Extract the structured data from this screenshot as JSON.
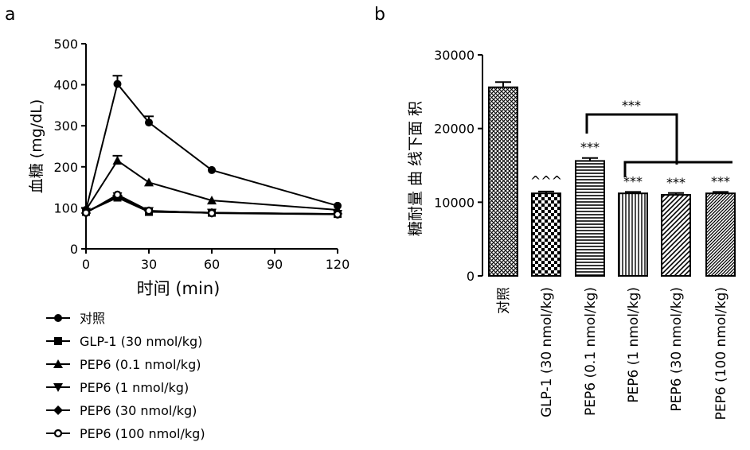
{
  "panels": {
    "a_label": "a",
    "b_label": "b"
  },
  "chart_data": [
    {
      "type": "line",
      "panel": "a",
      "ylabel": "血糖 (mg/dL)",
      "xlabel": "时间 (min)",
      "xlim": [
        0,
        120
      ],
      "ylim": [
        0,
        500
      ],
      "x_ticks": [
        0,
        30,
        60,
        90,
        120
      ],
      "y_ticks": [
        0,
        100,
        200,
        300,
        400,
        500
      ],
      "x": [
        0,
        15,
        30,
        60,
        120
      ],
      "legend_position": "below",
      "series": [
        {
          "name": "对照",
          "marker": "circle",
          "values": [
            95,
            402,
            308,
            192,
            105
          ],
          "errors": [
            0,
            20,
            15,
            0,
            0
          ]
        },
        {
          "name": "GLP-1 (30 nmol/kg)",
          "marker": "square",
          "values": [
            90,
            125,
            90,
            88,
            85
          ],
          "errors": [
            0,
            5,
            0,
            0,
            0
          ]
        },
        {
          "name": "PEP6 (0.1 nmol/kg)",
          "marker": "triangle-up",
          "values": [
            95,
            215,
            162,
            118,
            95
          ],
          "errors": [
            0,
            12,
            0,
            0,
            0
          ]
        },
        {
          "name": "PEP6 (1 nmol/kg)",
          "marker": "triangle-down",
          "values": [
            90,
            128,
            92,
            88,
            85
          ],
          "errors": [
            0,
            0,
            0,
            0,
            0
          ]
        },
        {
          "name": "PEP6 (30 nmol/kg)",
          "marker": "diamond",
          "values": [
            88,
            130,
            92,
            88,
            85
          ],
          "errors": [
            0,
            0,
            0,
            0,
            0
          ]
        },
        {
          "name": "PEP6 (100 nmol/kg)",
          "marker": "circle-open",
          "values": [
            88,
            132,
            93,
            87,
            84
          ],
          "errors": [
            0,
            0,
            0,
            0,
            0
          ]
        }
      ]
    },
    {
      "type": "bar",
      "panel": "b",
      "ylabel": "糖耐量 曲 线下面 积",
      "ylim": [
        0,
        30000
      ],
      "y_ticks": [
        0,
        10000,
        20000,
        30000
      ],
      "categories": [
        "对照",
        "GLP-1 (30 nmol/kg)",
        "PEP6 (0.1 nmol/kg)",
        "PEP6 (1 nmol/kg)",
        "PEP6 (30 nmol/kg)",
        "PEP6 (100 nmol/kg)"
      ],
      "values": [
        25600,
        11200,
        15600,
        11200,
        11000,
        11200
      ],
      "errors": [
        700,
        250,
        400,
        200,
        250,
        200
      ],
      "patterns": [
        "crosshatch",
        "checker",
        "horizontal",
        "vertical",
        "diagonal",
        "diagonal-dense"
      ],
      "annotations": [
        "",
        "^^^",
        "***",
        "***",
        "***",
        "***"
      ],
      "bracket_label_upper": "***",
      "bracket_label_lower": "***"
    }
  ]
}
